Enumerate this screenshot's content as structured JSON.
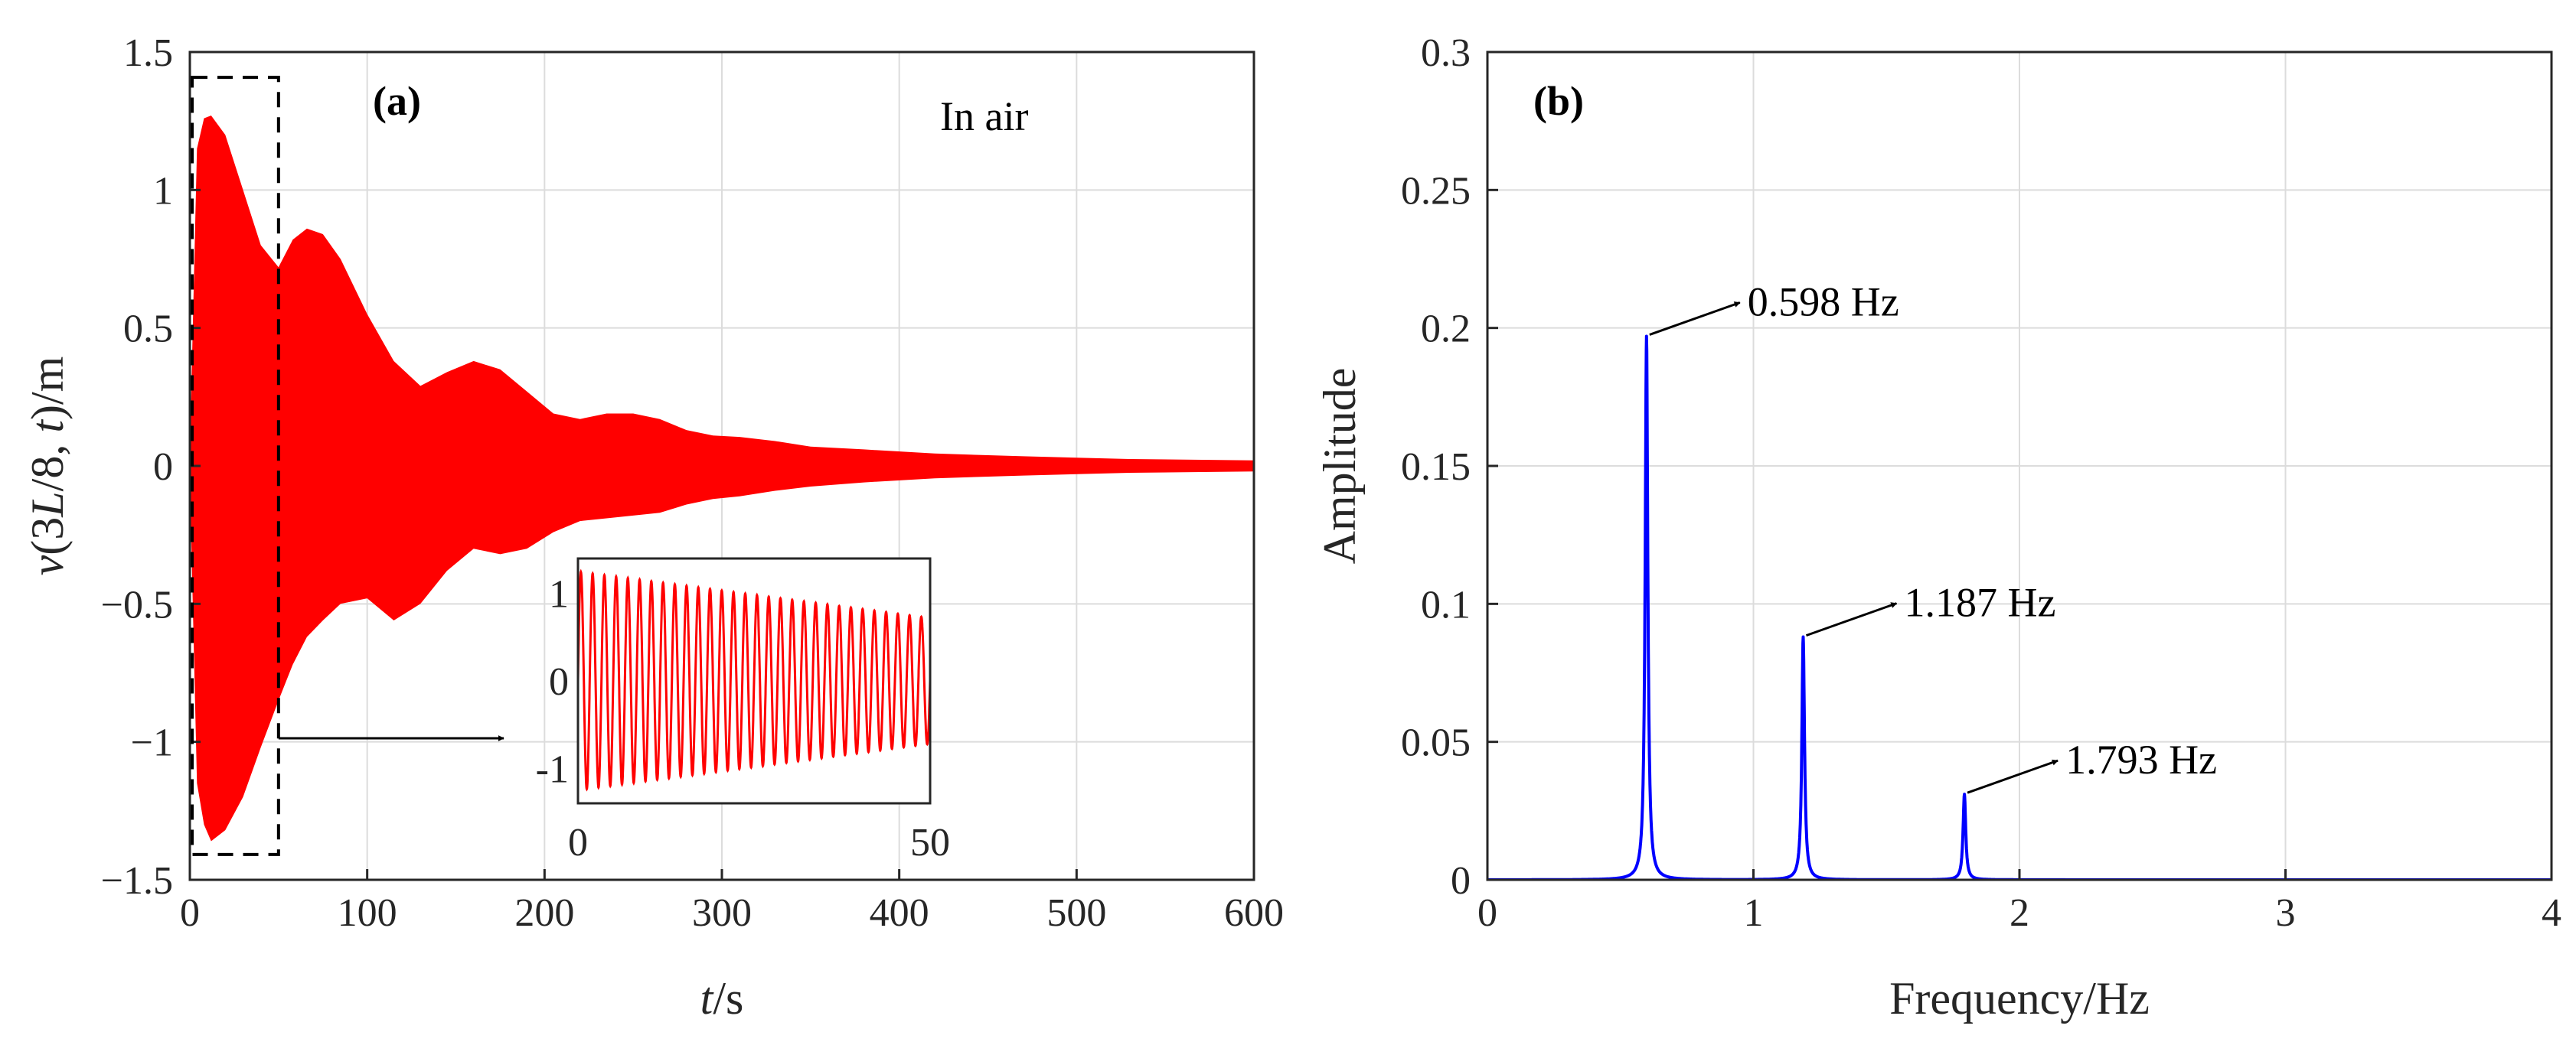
{
  "chart_data": [
    {
      "panel": "(a)",
      "type": "line",
      "title": "",
      "annotation": "In air",
      "xlabel_italic": "t",
      "xlabel_rest": "/s",
      "ylabel_parts": [
        "v",
        "(3",
        "L",
        "/8, ",
        "t",
        ")/m"
      ],
      "xlim": [
        0,
        600
      ],
      "ylim": [
        -1.5,
        1.5
      ],
      "xticks": [
        0,
        100,
        200,
        300,
        400,
        500,
        600
      ],
      "xtick_labels": [
        "0",
        "100",
        "200",
        "300",
        "400",
        "500",
        "600"
      ],
      "yticks": [
        -1.5,
        -1,
        -0.5,
        0,
        0.5,
        1,
        1.5
      ],
      "ytick_labels": [
        "−1.5",
        "−1",
        "−0.5",
        "0",
        "0.5",
        "1",
        "1.5"
      ],
      "grid": true,
      "series_color": "#ff0000",
      "envelope": {
        "t": [
          0,
          4,
          8,
          12,
          20,
          30,
          40,
          50,
          58,
          66,
          75,
          85,
          100,
          115,
          130,
          145,
          160,
          175,
          190,
          205,
          220,
          235,
          250,
          265,
          280,
          295,
          310,
          330,
          350,
          380,
          420,
          470,
          530,
          600
        ],
        "upper": [
          0.05,
          1.15,
          1.26,
          1.27,
          1.2,
          1.0,
          0.8,
          0.72,
          0.82,
          0.86,
          0.84,
          0.75,
          0.55,
          0.38,
          0.29,
          0.34,
          0.38,
          0.35,
          0.27,
          0.19,
          0.17,
          0.19,
          0.19,
          0.17,
          0.13,
          0.11,
          0.105,
          0.09,
          0.07,
          0.06,
          0.045,
          0.035,
          0.025,
          0.02
        ],
        "lower": [
          -0.05,
          -1.15,
          -1.3,
          -1.36,
          -1.32,
          -1.2,
          -1.02,
          -0.85,
          -0.72,
          -0.62,
          -0.56,
          -0.5,
          -0.48,
          -0.56,
          -0.5,
          -0.38,
          -0.3,
          -0.32,
          -0.3,
          -0.24,
          -0.2,
          -0.19,
          -0.18,
          -0.17,
          -0.14,
          -0.12,
          -0.11,
          -0.09,
          -0.075,
          -0.06,
          -0.045,
          -0.035,
          -0.025,
          -0.02
        ]
      },
      "zoom_box": {
        "t_range": [
          0,
          50
        ],
        "v_range": [
          -1.4,
          1.4
        ]
      },
      "inset": {
        "xlim": [
          0,
          50
        ],
        "ylim": [
          -1.4,
          1.4
        ],
        "xtick_labels": [
          "0",
          "50"
        ],
        "ytick_labels": [
          "1",
          "0",
          "-1"
        ],
        "yticks": [
          1,
          0,
          -1
        ],
        "oscillation_cycles": 30,
        "amplitude_start": 1.25,
        "amplitude_end": 0.72
      }
    },
    {
      "panel": "(b)",
      "type": "line",
      "title": "",
      "xlabel": "Frequency/Hz",
      "ylabel": "Amplitude",
      "xlim": [
        0,
        4
      ],
      "ylim": [
        0,
        0.3
      ],
      "xticks": [
        0,
        1,
        2,
        3,
        4
      ],
      "xtick_labels": [
        "0",
        "1",
        "2",
        "3",
        "4"
      ],
      "yticks": [
        0,
        0.05,
        0.1,
        0.15,
        0.2,
        0.25,
        0.3
      ],
      "ytick_labels": [
        "0",
        "0.05",
        "0.1",
        "0.15",
        "0.2",
        "0.25",
        "0.3"
      ],
      "grid": true,
      "series_color": "#0000ff",
      "peaks": [
        {
          "frequency": 0.598,
          "amplitude": 0.197,
          "label": "0.598 Hz"
        },
        {
          "frequency": 1.187,
          "amplitude": 0.088,
          "label": "1.187 Hz"
        },
        {
          "frequency": 1.793,
          "amplitude": 0.031,
          "label": "1.793 Hz"
        }
      ],
      "peak_halfwidth": 0.006
    }
  ]
}
